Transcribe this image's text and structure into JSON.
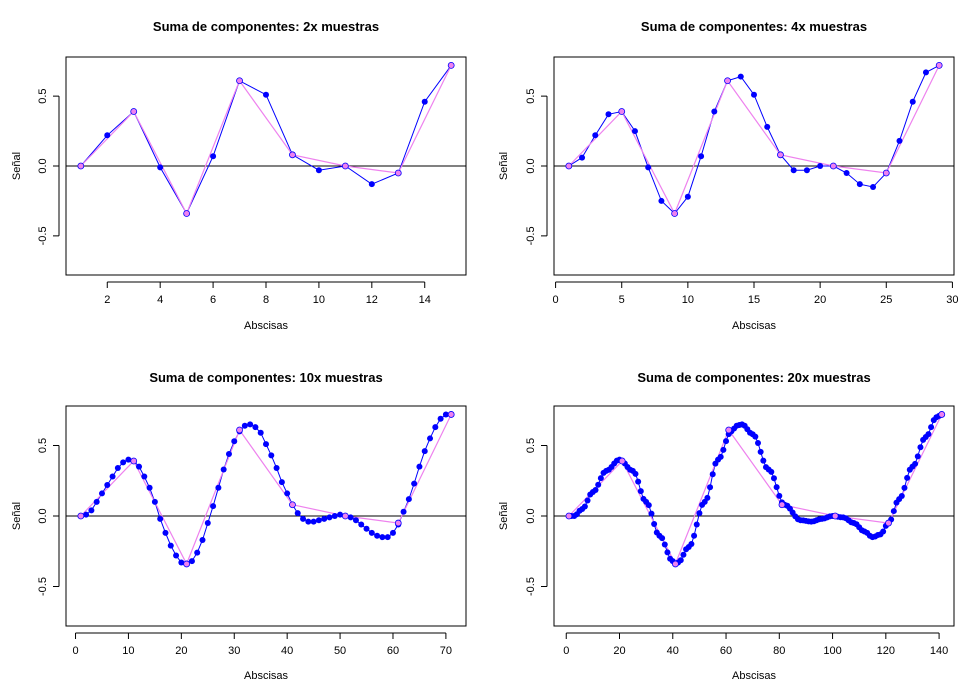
{
  "colors": {
    "sampled_line": "#0000FF",
    "sampled_point": "#0000FF",
    "original_line": "#EE82EE",
    "original_point_fill": "#EE82EE",
    "point_edge": "#0000FF",
    "zero_line": "#000000",
    "background": "#FFFFFF"
  },
  "chart_data": [
    {
      "type": "line",
      "title": "Suma de componentes: 2x muestras",
      "xlabel": "Abscisas",
      "ylabel": "Señal",
      "xlim": [
        0.44,
        15.56
      ],
      "ylim": [
        -0.78,
        0.78
      ],
      "xticks": [
        2,
        4,
        6,
        8,
        10,
        12,
        14
      ],
      "yticks": [
        -0.5,
        0.0,
        0.5
      ],
      "grid": false,
      "legend": "none",
      "hline": 0,
      "series": [
        {
          "role": "sampled",
          "x": [
            1,
            2,
            3,
            4,
            5,
            6,
            7,
            8,
            9,
            10,
            11,
            12,
            13,
            14,
            15
          ],
          "y": [
            0.0,
            0.22,
            0.39,
            -0.01,
            -0.34,
            0.07,
            0.61,
            0.51,
            0.08,
            -0.03,
            0.0,
            -0.13,
            -0.05,
            0.46,
            0.72
          ]
        },
        {
          "role": "original",
          "x": [
            1,
            3,
            5,
            7,
            9,
            11,
            13,
            15
          ],
          "y": [
            0.0,
            0.39,
            -0.34,
            0.61,
            0.08,
            0.0,
            -0.05,
            0.72
          ]
        }
      ]
    },
    {
      "type": "line",
      "title": "Suma de componentes: 4x muestras",
      "xlabel": "Abscisas",
      "ylabel": "Señal",
      "xlim": [
        -0.12,
        30.12
      ],
      "ylim": [
        -0.78,
        0.78
      ],
      "xticks": [
        0,
        5,
        10,
        15,
        20,
        25,
        30
      ],
      "yticks": [
        -0.5,
        0.0,
        0.5
      ],
      "grid": false,
      "legend": "none",
      "hline": 0,
      "series": [
        {
          "role": "sampled",
          "x": [
            1,
            2,
            3,
            4,
            5,
            6,
            7,
            8,
            9,
            10,
            11,
            12,
            13,
            14,
            15,
            16,
            17,
            18,
            19,
            20,
            21,
            22,
            23,
            24,
            25,
            26,
            27,
            28,
            29
          ],
          "y": [
            0.0,
            0.06,
            0.22,
            0.37,
            0.39,
            0.25,
            -0.01,
            -0.25,
            -0.34,
            -0.22,
            0.07,
            0.39,
            0.61,
            0.64,
            0.51,
            0.28,
            0.08,
            -0.03,
            -0.03,
            0.0,
            0.0,
            -0.05,
            -0.13,
            -0.15,
            -0.05,
            0.18,
            0.46,
            0.67,
            0.72
          ]
        },
        {
          "role": "original",
          "x": [
            1,
            5,
            9,
            13,
            17,
            21,
            25,
            29
          ],
          "y": [
            0.0,
            0.39,
            -0.34,
            0.61,
            0.08,
            0.0,
            -0.05,
            0.72
          ]
        }
      ]
    },
    {
      "type": "line",
      "title": "Suma de componentes: 10x muestras",
      "xlabel": "Abscisas",
      "ylabel": "Señal",
      "xlim": [
        -1.8,
        73.8
      ],
      "ylim": [
        -0.78,
        0.78
      ],
      "xticks": [
        0,
        10,
        20,
        30,
        40,
        50,
        60,
        70
      ],
      "yticks": [
        -0.5,
        0.0,
        0.5
      ],
      "grid": false,
      "legend": "none",
      "hline": 0,
      "series": [
        {
          "role": "sampled",
          "x": [
            1,
            2,
            3,
            4,
            5,
            6,
            7,
            8,
            9,
            10,
            11,
            12,
            13,
            14,
            15,
            16,
            17,
            18,
            19,
            20,
            21,
            22,
            23,
            24,
            25,
            26,
            27,
            28,
            29,
            30,
            31,
            32,
            33,
            34,
            35,
            36,
            37,
            38,
            39,
            40,
            41,
            42,
            43,
            44,
            45,
            46,
            47,
            48,
            49,
            50,
            51,
            52,
            53,
            54,
            55,
            56,
            57,
            58,
            59,
            60,
            61,
            62,
            63,
            64,
            65,
            66,
            67,
            68,
            69,
            70,
            71
          ],
          "y": [
            0.0,
            0.01,
            0.04,
            0.1,
            0.16,
            0.22,
            0.28,
            0.34,
            0.38,
            0.4,
            0.39,
            0.35,
            0.28,
            0.2,
            0.1,
            -0.02,
            -0.12,
            -0.21,
            -0.28,
            -0.33,
            -0.34,
            -0.32,
            -0.26,
            -0.17,
            -0.05,
            0.07,
            0.2,
            0.33,
            0.44,
            0.53,
            0.6,
            0.64,
            0.65,
            0.63,
            0.59,
            0.51,
            0.43,
            0.34,
            0.24,
            0.16,
            0.08,
            0.02,
            -0.02,
            -0.04,
            -0.04,
            -0.03,
            -0.02,
            -0.01,
            0.0,
            0.01,
            0.0,
            -0.01,
            -0.03,
            -0.06,
            -0.09,
            -0.12,
            -0.14,
            -0.15,
            -0.15,
            -0.12,
            -0.06,
            0.03,
            0.12,
            0.23,
            0.35,
            0.46,
            0.55,
            0.63,
            0.69,
            0.72,
            0.72
          ]
        },
        {
          "role": "original",
          "x": [
            1,
            11,
            21,
            31,
            41,
            51,
            61,
            71
          ],
          "y": [
            0.0,
            0.39,
            -0.34,
            0.61,
            0.08,
            0.0,
            -0.05,
            0.72
          ]
        }
      ]
    },
    {
      "type": "line",
      "title": "Suma de componentes: 20x muestras",
      "xlabel": "Abscisas",
      "ylabel": "Señal",
      "xlim": [
        -4.6,
        145.6
      ],
      "ylim": [
        -0.78,
        0.78
      ],
      "xticks": [
        0,
        20,
        40,
        60,
        80,
        100,
        120,
        140
      ],
      "yticks": [
        -0.5,
        0.0,
        0.5
      ],
      "grid": false,
      "legend": "none",
      "hline": 0,
      "series": [
        {
          "role": "sampled",
          "x_start": 1,
          "x_step": 1,
          "count": 141,
          "knots_x": [
            1,
            3,
            6,
            10,
            15,
            20,
            25,
            30,
            35,
            40,
            41,
            42,
            46,
            52,
            57,
            62,
            64,
            66,
            70,
            76,
            82,
            88,
            92,
            96,
            100,
            104,
            108,
            112,
            115,
            118,
            121,
            125,
            130,
            135,
            139,
            141
          ],
          "knots_y": [
            0.0,
            0.0,
            0.05,
            0.17,
            0.32,
            0.4,
            0.32,
            0.1,
            -0.14,
            -0.32,
            -0.34,
            -0.33,
            -0.22,
            0.1,
            0.4,
            0.6,
            0.64,
            0.65,
            0.58,
            0.33,
            0.08,
            -0.03,
            -0.04,
            -0.02,
            0.0,
            -0.01,
            -0.05,
            -0.11,
            -0.15,
            -0.13,
            -0.05,
            0.12,
            0.35,
            0.56,
            0.7,
            0.72
          ]
        },
        {
          "role": "original",
          "x": [
            1,
            21,
            41,
            61,
            81,
            101,
            121,
            141
          ],
          "y": [
            0.0,
            0.39,
            -0.34,
            0.61,
            0.08,
            0.0,
            -0.05,
            0.72
          ]
        }
      ]
    }
  ]
}
